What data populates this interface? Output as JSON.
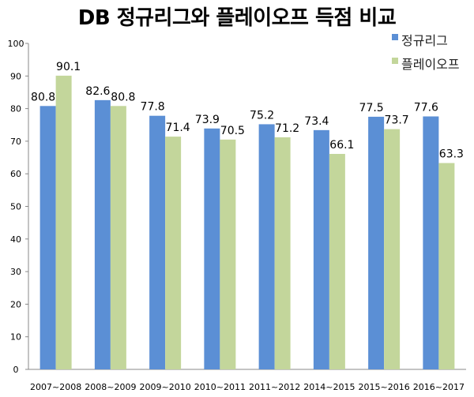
{
  "chart_data": {
    "type": "bar",
    "title": "DB 정규리그와 플레이오프 득점 비교",
    "xlabel": "",
    "ylabel": "",
    "ylim": [
      0,
      100
    ],
    "yticks": [
      0,
      10,
      20,
      30,
      40,
      50,
      60,
      70,
      80,
      90,
      100
    ],
    "grid": false,
    "legend_position": "top-right",
    "categories": [
      "2007~2008",
      "2008~2009",
      "2009~2010",
      "2010~2011",
      "2011~2012",
      "2014~2015",
      "2015~2016",
      "2016~2017"
    ],
    "series": [
      {
        "name": "정규리그",
        "color": "#5b8fd5",
        "values": [
          80.8,
          82.6,
          77.8,
          73.9,
          75.2,
          73.4,
          77.5,
          77.6
        ]
      },
      {
        "name": "플레이오프",
        "color": "#c3d69b",
        "values": [
          90.1,
          80.8,
          71.4,
          70.5,
          71.2,
          66.1,
          73.7,
          63.3
        ]
      }
    ],
    "data_labels": true
  }
}
